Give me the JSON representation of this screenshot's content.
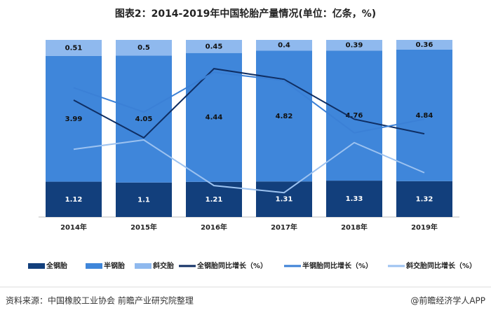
{
  "chart_data": {
    "type": "bar",
    "stack": "percent",
    "title": "图表2：2014-2019年中国轮胎产量情况(单位：亿条，%)",
    "categories": [
      "2014年",
      "2015年",
      "2016年",
      "2017年",
      "2018年",
      "2019年"
    ],
    "series": [
      {
        "name": "全钢胎",
        "color": "#123f7c",
        "label_color": "#ffffff",
        "values": [
          1.12,
          1.1,
          1.21,
          1.31,
          1.33,
          1.32
        ]
      },
      {
        "name": "半钢胎",
        "color": "#3f86da",
        "label_color": "#111111",
        "values": [
          3.99,
          4.05,
          4.44,
          4.82,
          4.76,
          4.84
        ]
      },
      {
        "name": "斜交胎",
        "color": "#8fb9ee",
        "label_color": "#111111",
        "values": [
          0.51,
          0.5,
          0.45,
          0.4,
          0.39,
          0.36
        ]
      },
      {
        "name": "全钢胎同比增长（%）",
        "type": "line",
        "axis": "y2",
        "color": "#0f2e63",
        "values": [
          6.4,
          -2.1,
          13.5,
          11.1,
          2.1,
          -1.2
        ]
      },
      {
        "name": "半钢胎同比增长（%）",
        "type": "line",
        "axis": "y2",
        "color": "#3b80d6",
        "values": [
          9.2,
          3.7,
          12.7,
          10.8,
          -1.0,
          2.1
        ]
      },
      {
        "name": "斜交胎同比增长（%）",
        "type": "line",
        "axis": "y2",
        "color": "#9cc2f0",
        "values": [
          -4.7,
          -2.6,
          -12.9,
          -14.5,
          -3.2,
          -10.0
        ]
      }
    ],
    "y2lim": [
      -20,
      20
    ],
    "source": "资料来源：中国橡胶工业协会 前瞻产业研究院整理",
    "credit": "@前瞻经济学人APP"
  }
}
